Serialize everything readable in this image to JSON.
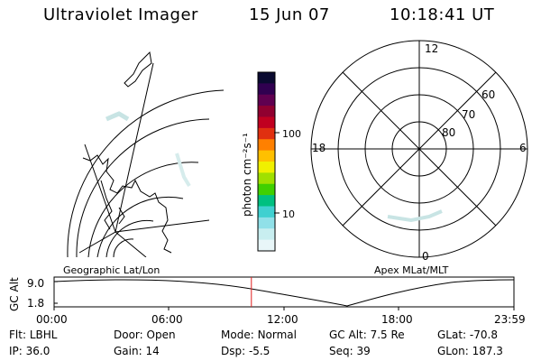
{
  "header": {
    "app_title": "Ultraviolet Imager",
    "date": "15 Jun 07",
    "time": "10:18:41 UT"
  },
  "left_panel": {
    "label": "Geographic Lat/Lon"
  },
  "colorbar": {
    "unit_label": "photon cm⁻²s⁻¹",
    "ticks": [
      "100",
      "10"
    ],
    "colors": [
      "#0a0a30",
      "#300050",
      "#600050",
      "#900030",
      "#c00020",
      "#e03010",
      "#ff8000",
      "#ffc000",
      "#f0f000",
      "#a0e000",
      "#40d000",
      "#00c080",
      "#40d0d0",
      "#90e0e8",
      "#c8eef0",
      "#e8f6f8"
    ]
  },
  "right_panel": {
    "label": "Apex MLat/MLT",
    "mlt_labels": [
      "12",
      "18",
      "6",
      "0"
    ],
    "lat_labels": [
      "60",
      "70",
      "80"
    ]
  },
  "timeline": {
    "ylabel": "GC Alt",
    "yticks": [
      "9.0",
      "1.8"
    ],
    "xticks": [
      "00:00",
      "06:00",
      "12:00",
      "18:00",
      "23:59"
    ],
    "current_time_fraction": 0.429
  },
  "info": {
    "row1": [
      {
        "label": "Flt:",
        "value": "LBHL"
      },
      {
        "label": "Door:",
        "value": "Open"
      },
      {
        "label": "Mode:",
        "value": "Normal"
      },
      {
        "label": "GC Alt:",
        "value": "7.5 Re"
      },
      {
        "label": "GLat:",
        "value": "-70.8"
      }
    ],
    "row2": [
      {
        "label": "IP:",
        "value": "36.0"
      },
      {
        "label": "Gain:",
        "value": "14"
      },
      {
        "label": "Dsp:",
        "value": "-5.5"
      },
      {
        "label": "Seq:",
        "value": "39"
      },
      {
        "label": "GLon:",
        "value": "187.3"
      }
    ]
  }
}
